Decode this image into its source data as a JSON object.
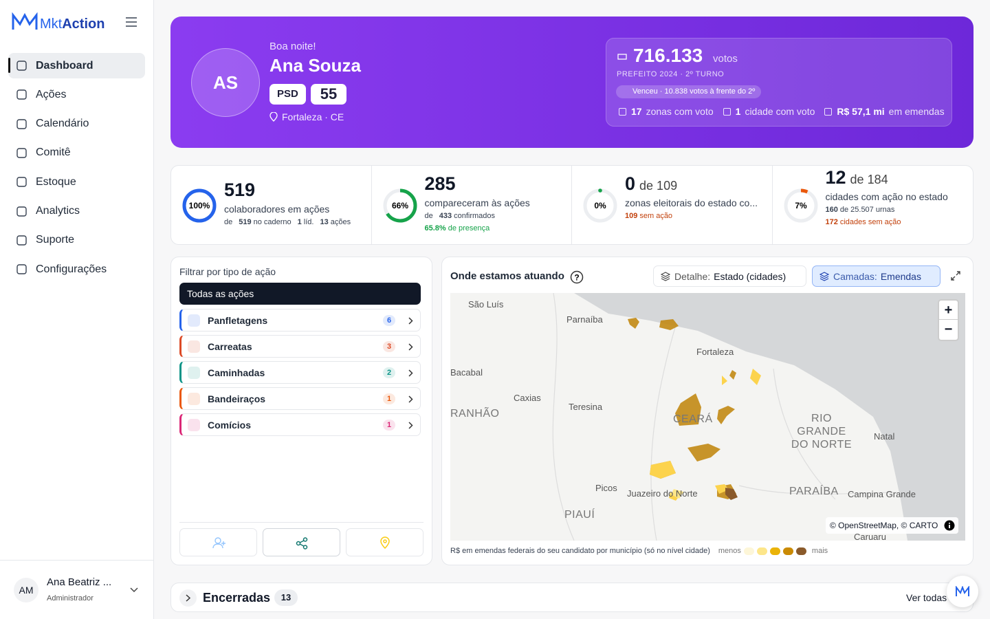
{
  "sidebar": {
    "brand_prefix": "Mkt",
    "brand_suffix": "Action",
    "nav": [
      "Dashboard",
      "Ações",
      "Calendário",
      "Comitê",
      "Estoque",
      "Analytics",
      "Suporte",
      "Configurações"
    ],
    "active": 0,
    "user": {
      "initials": "AM",
      "name": "Ana Beatriz ...",
      "role": "Administrador"
    }
  },
  "hero": {
    "avatar": "AS",
    "greeting": "Boa noite!",
    "name": "Ana Souza",
    "party": "PSD",
    "number": "55",
    "location": "Fortaleza · CE",
    "votes": "716.133",
    "votes_unit": "votos",
    "election": "PREFEITO 2024 · 2º TURNO",
    "badge": "Venceu · 10.838 votos à frente do 2º",
    "stats": [
      {
        "value": "17",
        "label": "zonas com voto"
      },
      {
        "value": "1",
        "label": "cidade com voto"
      },
      {
        "value": "R$ 57,1 mi",
        "label": "em emendas"
      }
    ]
  },
  "kpis": [
    {
      "ring": {
        "value": 100,
        "label": "100%"
      },
      "color": "#2563eb",
      "main": "519",
      "caption": "colaboradores em ações",
      "lines": [
        {
          "parts": [
            {
              "text": "de"
            },
            {
              "text": "519",
              "bold": true
            },
            {
              "text": "no caderno"
            },
            {
              "text": "1",
              "bold": true
            },
            {
              "text": "líd."
            },
            {
              "text": "13",
              "bold": true
            },
            {
              "text": "ações"
            }
          ]
        }
      ]
    },
    {
      "ring": {
        "value": 66,
        "label": "66%"
      },
      "color": "#16a34a",
      "main": "285",
      "caption": "compareceram às ações",
      "lines": [
        {
          "parts": [
            {
              "text": "de"
            },
            {
              "text": "433",
              "bold": true
            },
            {
              "text": "confirmados"
            }
          ]
        },
        {
          "color": "#16a34a",
          "parts": [
            {
              "text": "65.8%",
              "bold": true
            },
            {
              "text": "de presença"
            }
          ]
        }
      ]
    },
    {
      "ring": {
        "value": 0,
        "label": "0%"
      },
      "color": "#16a34a",
      "main": "0",
      "of": "de 109",
      "caption": "zonas eleitorais do estado co...",
      "lines": [
        {
          "color": "#c2410c",
          "parts": [
            {
              "text": "109",
              "bold": true
            },
            {
              "text": "sem ação"
            }
          ]
        }
      ]
    },
    {
      "ring": {
        "value": 7,
        "label": "7%"
      },
      "color": "#ea580c",
      "main": "12",
      "of": "de 184",
      "caption": "cidades com ação no estado",
      "lines": [
        {
          "parts": [
            {
              "text": "160",
              "bold": true
            },
            {
              "text": "de 25.507 urnas"
            }
          ]
        },
        {
          "color": "#c2410c",
          "parts": [
            {
              "text": "172",
              "bold": true
            },
            {
              "text": "cidades sem ação"
            }
          ]
        }
      ]
    }
  ],
  "filter": {
    "title": "Filtrar por tipo de ação",
    "all": "Todas as ações",
    "items": [
      {
        "label": "Panfletagens",
        "count": "6",
        "color": "#2563eb"
      },
      {
        "label": "Carreatas",
        "count": "3",
        "color": "#dc4a26"
      },
      {
        "label": "Caminhadas",
        "count": "2",
        "color": "#0d9488"
      },
      {
        "label": "Bandeiraços",
        "count": "1",
        "color": "#ea580c"
      },
      {
        "label": "Comícios",
        "count": "1",
        "color": "#db2777"
      }
    ]
  },
  "map": {
    "title": "Onde estamos atuando",
    "detail_label": "Detalhe:",
    "detail_value": "Estado (cidades)",
    "layers_label": "Camadas:",
    "layers_value": "Emendas",
    "zoom_in": "+",
    "zoom_out": "−",
    "attribution": "© OpenStreetMap, © CARTO",
    "labels": [
      "São Luís",
      "Parnaíba",
      "Fortaleza",
      "Bacabal",
      "Caxias",
      "Teresina",
      "RANHÃO",
      "CEARÁ",
      "RIO GRANDE DO NORTE",
      "Natal",
      "Picos",
      "Juazeiro do Norte",
      "PARAÍBA",
      "Campina Grande",
      "PIAUÍ",
      "Caruaru"
    ],
    "legend": {
      "caption": "R$ em emendas federais do seu candidato por município (só no nível cidade)",
      "min": "menos",
      "max": "mais",
      "colors": [
        "#fdf6d8",
        "#fde68a",
        "#eab308",
        "#ca8a04",
        "#8a5a2b"
      ]
    }
  },
  "closed": {
    "title": "Encerradas",
    "count": "13",
    "link": "Ver todas"
  }
}
